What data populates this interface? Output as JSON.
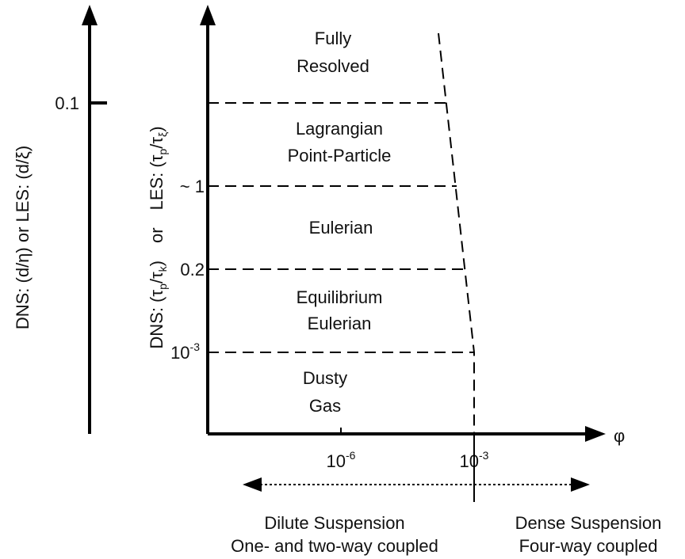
{
  "left_axis": {
    "label": "DNS: (d/η) or LES: (d/ξ)",
    "ticks": [
      "0.1"
    ]
  },
  "inner_axis": {
    "label_parts": [
      "DNS: (τ",
      "p",
      "/τ",
      "k",
      ")",
      "or",
      "LES: (τ",
      "p",
      "/τ",
      "ξ",
      ")"
    ],
    "ticks": [
      "~ 1",
      "0.2",
      {
        "base": "10",
        "exp": "-3"
      }
    ]
  },
  "x_axis": {
    "label": "φ",
    "ticks": [
      {
        "base": "10",
        "exp": "-6"
      },
      {
        "base": "10",
        "exp": "-3"
      }
    ]
  },
  "regions": [
    [
      "Fully",
      "Resolved"
    ],
    [
      "Lagrangian",
      "Point-Particle"
    ],
    [
      "Eulerian"
    ],
    [
      "Equilibrium",
      "Eulerian"
    ],
    [
      "Dusty",
      "Gas"
    ]
  ],
  "bottom": {
    "dilute": [
      "Dilute Suspension",
      "One- and two-way coupled"
    ],
    "dense": [
      "Dense Suspension",
      "Four-way coupled"
    ]
  }
}
